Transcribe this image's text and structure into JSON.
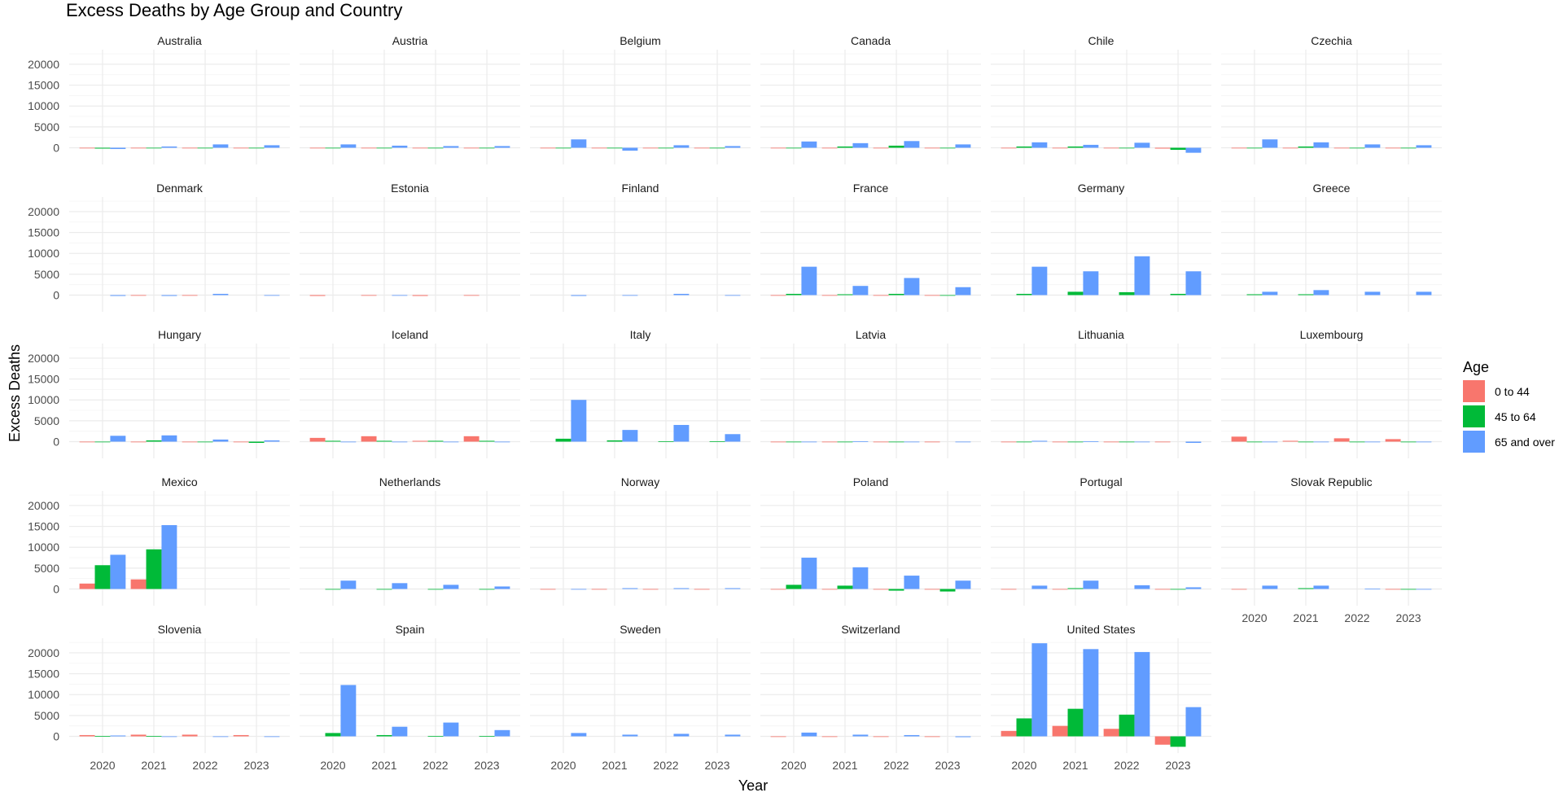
{
  "chart_data": {
    "type": "bar",
    "title": "Excess Deaths by Age Group and Country",
    "xlabel": "Year",
    "ylabel": "Excess Deaths",
    "categories": [
      "2020",
      "2021",
      "2022",
      "2023"
    ],
    "y_ticks": [
      "0",
      "5000",
      "10000",
      "15000",
      "20000"
    ],
    "ylim": [
      -4000,
      23500
    ],
    "grid": true,
    "legend_position": "right",
    "legend": {
      "title": "Age",
      "entries": [
        {
          "label": "0 to 44",
          "color": "#F8766D"
        },
        {
          "label": "45 to 64",
          "color": "#00BA38"
        },
        {
          "label": "65 and over",
          "color": "#619CFF"
        }
      ]
    },
    "panels": [
      {
        "country": "Australia",
        "values": [
          [
            -100,
            -200,
            -300
          ],
          [
            -100,
            -100,
            300
          ],
          [
            -100,
            -100,
            800
          ],
          [
            -100,
            -100,
            600
          ]
        ]
      },
      {
        "country": "Austria",
        "values": [
          [
            -100,
            -100,
            800
          ],
          [
            -100,
            -100,
            500
          ],
          [
            -100,
            -100,
            400
          ],
          [
            -100,
            -100,
            400
          ]
        ]
      },
      {
        "country": "Belgium",
        "values": [
          [
            -100,
            -100,
            2000
          ],
          [
            -100,
            -100,
            -700
          ],
          [
            -100,
            -100,
            600
          ],
          [
            -100,
            -100,
            400
          ]
        ]
      },
      {
        "country": "Canada",
        "values": [
          [
            -100,
            -100,
            1500
          ],
          [
            -100,
            300,
            1100
          ],
          [
            -100,
            500,
            1600
          ],
          [
            -100,
            -100,
            800
          ]
        ]
      },
      {
        "country": "Chile",
        "values": [
          [
            -100,
            300,
            1300
          ],
          [
            -100,
            300,
            700
          ],
          [
            -100,
            -100,
            1200
          ],
          [
            -200,
            -500,
            -1200
          ]
        ]
      },
      {
        "country": "Czechia",
        "values": [
          [
            -100,
            -100,
            2000
          ],
          [
            -100,
            300,
            1300
          ],
          [
            -100,
            -100,
            800
          ],
          [
            -100,
            -100,
            600
          ]
        ]
      },
      {
        "country": "Denmark",
        "values": [
          [
            0,
            0,
            -200
          ],
          [
            -100,
            0,
            -200
          ],
          [
            -100,
            0,
            300
          ],
          [
            0,
            0,
            -100
          ]
        ]
      },
      {
        "country": "Estonia",
        "values": [
          [
            -200,
            0,
            0
          ],
          [
            -100,
            0,
            -100
          ],
          [
            -200,
            0,
            0
          ],
          [
            -100,
            0,
            0
          ]
        ]
      },
      {
        "country": "Finland",
        "values": [
          [
            0,
            0,
            -200
          ],
          [
            0,
            0,
            -100
          ],
          [
            0,
            0,
            300
          ],
          [
            0,
            0,
            -100
          ]
        ]
      },
      {
        "country": "France",
        "values": [
          [
            -100,
            300,
            6800
          ],
          [
            -100,
            200,
            2200
          ],
          [
            -100,
            300,
            4100
          ],
          [
            -100,
            -100,
            1900
          ]
        ]
      },
      {
        "country": "Germany",
        "values": [
          [
            0,
            300,
            6800
          ],
          [
            0,
            800,
            5700
          ],
          [
            0,
            700,
            9300
          ],
          [
            0,
            300,
            5700
          ]
        ]
      },
      {
        "country": "Greece",
        "values": [
          [
            0,
            200,
            800
          ],
          [
            0,
            200,
            1200
          ],
          [
            0,
            0,
            800
          ],
          [
            0,
            0,
            800
          ]
        ]
      },
      {
        "country": "Hungary",
        "values": [
          [
            -100,
            -100,
            1400
          ],
          [
            -100,
            300,
            1500
          ],
          [
            -100,
            -100,
            500
          ],
          [
            -100,
            -300,
            300
          ]
        ]
      },
      {
        "country": "Iceland",
        "values": [
          [
            900,
            200,
            -100
          ],
          [
            1300,
            200,
            -100
          ],
          [
            200,
            200,
            -100
          ],
          [
            1300,
            200,
            -100
          ]
        ]
      },
      {
        "country": "Italy",
        "values": [
          [
            0,
            700,
            10000
          ],
          [
            0,
            300,
            2800
          ],
          [
            0,
            100,
            4000
          ],
          [
            0,
            100,
            1800
          ]
        ]
      },
      {
        "country": "Latvia",
        "values": [
          [
            -100,
            -100,
            -100
          ],
          [
            -100,
            -100,
            100
          ],
          [
            -100,
            -100,
            -100
          ],
          [
            -100,
            0,
            -100
          ]
        ]
      },
      {
        "country": "Lithuania",
        "values": [
          [
            -100,
            -100,
            200
          ],
          [
            -100,
            -100,
            100
          ],
          [
            -100,
            -100,
            -100
          ],
          [
            -100,
            0,
            -300
          ]
        ]
      },
      {
        "country": "Luxembourg",
        "values": [
          [
            1200,
            -100,
            -100
          ],
          [
            200,
            -100,
            -100
          ],
          [
            800,
            -100,
            -100
          ],
          [
            600,
            -100,
            -100
          ]
        ]
      },
      {
        "country": "Mexico",
        "values": [
          [
            1300,
            5700,
            8200
          ],
          [
            2300,
            9500,
            15300
          ],
          [
            0,
            0,
            0
          ],
          [
            0,
            0,
            0
          ]
        ]
      },
      {
        "country": "Netherlands",
        "values": [
          [
            0,
            -100,
            2000
          ],
          [
            0,
            -100,
            1400
          ],
          [
            0,
            -100,
            1000
          ],
          [
            0,
            -100,
            600
          ]
        ]
      },
      {
        "country": "Norway",
        "values": [
          [
            -100,
            0,
            -100
          ],
          [
            -100,
            0,
            200
          ],
          [
            -100,
            0,
            200
          ],
          [
            -100,
            0,
            200
          ]
        ]
      },
      {
        "country": "Poland",
        "values": [
          [
            -100,
            1000,
            7500
          ],
          [
            -100,
            800,
            5200
          ],
          [
            -100,
            -400,
            3200
          ],
          [
            -100,
            -600,
            2000
          ]
        ]
      },
      {
        "country": "Portugal",
        "values": [
          [
            -100,
            0,
            800
          ],
          [
            -100,
            200,
            2000
          ],
          [
            0,
            0,
            900
          ],
          [
            -100,
            -100,
            400
          ]
        ]
      },
      {
        "country": "Slovak Republic",
        "values": [
          [
            -100,
            0,
            800
          ],
          [
            0,
            200,
            800
          ],
          [
            0,
            0,
            100
          ],
          [
            -100,
            -100,
            -100
          ]
        ]
      },
      {
        "country": "Slovenia",
        "values": [
          [
            300,
            100,
            200
          ],
          [
            400,
            100,
            -100
          ],
          [
            400,
            0,
            -100
          ],
          [
            300,
            0,
            -100
          ]
        ]
      },
      {
        "country": "Spain",
        "values": [
          [
            0,
            800,
            12300
          ],
          [
            0,
            300,
            2300
          ],
          [
            0,
            100,
            3300
          ],
          [
            0,
            100,
            1500
          ]
        ]
      },
      {
        "country": "Sweden",
        "values": [
          [
            0,
            0,
            800
          ],
          [
            0,
            0,
            400
          ],
          [
            0,
            0,
            600
          ],
          [
            0,
            0,
            400
          ]
        ]
      },
      {
        "country": "Switzerland",
        "values": [
          [
            -100,
            0,
            900
          ],
          [
            -100,
            0,
            400
          ],
          [
            -100,
            0,
            300
          ],
          [
            -100,
            0,
            -200
          ]
        ]
      },
      {
        "country": "United States",
        "values": [
          [
            1300,
            4300,
            22300
          ],
          [
            2500,
            6600,
            20900
          ],
          [
            1800,
            5200,
            20200
          ],
          [
            -2000,
            -2500,
            7000
          ]
        ]
      }
    ]
  }
}
